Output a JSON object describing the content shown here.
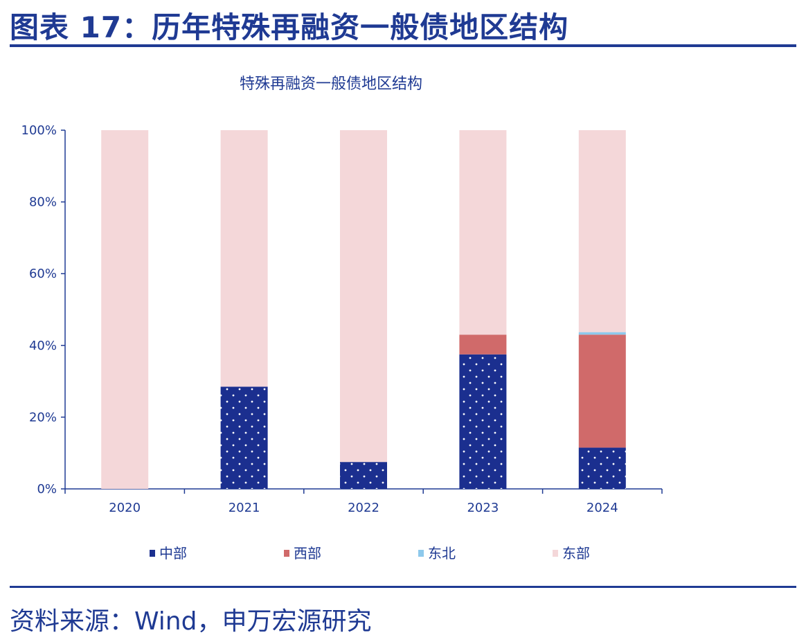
{
  "figure": {
    "title": "图表 17：历年特殊再融资一般债地区结构",
    "source": "资料来源：Wind，申万宏源研究"
  },
  "colors": {
    "brand": "#1f3a93",
    "axis": "#1f3a93",
    "中部": "#1b2f8f",
    "西部": "#d06a6a",
    "东北": "#8ec9ec",
    "东部": "#f4d7d9"
  },
  "chart_data": {
    "type": "bar",
    "stacked": true,
    "title": "特殊再融资一般债地区结构",
    "categories": [
      "2020",
      "2021",
      "2022",
      "2023",
      "2024"
    ],
    "series": [
      {
        "name": "中部",
        "values": [
          0,
          28.5,
          7.5,
          37.5,
          11.5
        ],
        "pattern": "dots"
      },
      {
        "name": "西部",
        "values": [
          0,
          0,
          0,
          5.5,
          31.5
        ]
      },
      {
        "name": "东北",
        "values": [
          0,
          0,
          0,
          0,
          0.7
        ]
      },
      {
        "name": "东部",
        "values": [
          100,
          71.5,
          92.5,
          57,
          56.3
        ]
      }
    ],
    "ylim": [
      0,
      100
    ],
    "yticks": [
      "0%",
      "20%",
      "40%",
      "60%",
      "80%",
      "100%"
    ],
    "ytick_values": [
      0,
      20,
      40,
      60,
      80,
      100
    ],
    "xlabel": "",
    "ylabel": "",
    "legend_position": "bottom"
  }
}
